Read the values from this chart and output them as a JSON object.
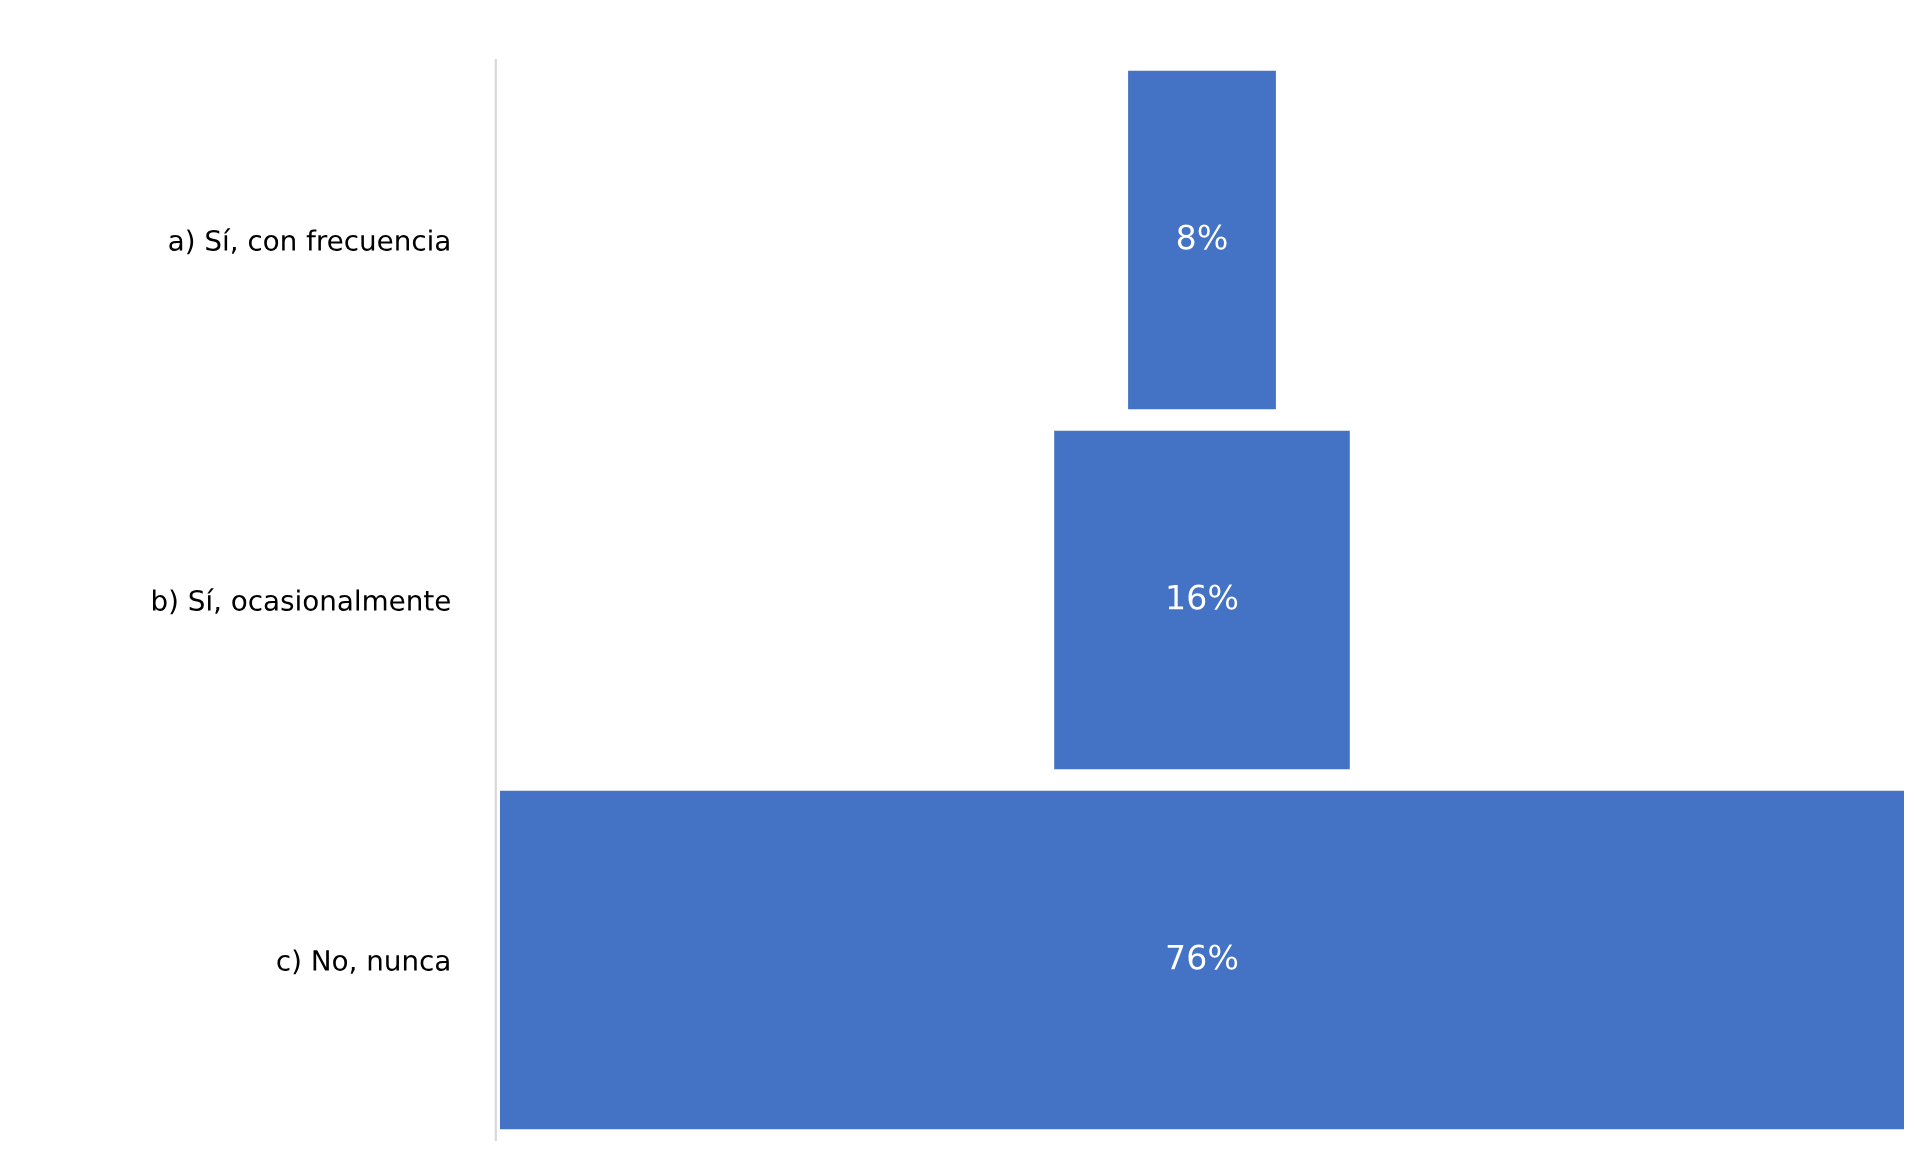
{
  "chart_data": {
    "type": "other",
    "categories": [
      "a) Sí, con frecuencia",
      "b) Sí, ocasionalmente",
      "c) No, nunca"
    ],
    "values": [
      8,
      16,
      76
    ],
    "value_labels": [
      "8%",
      "16%",
      "76%"
    ],
    "color": "#4472c4"
  }
}
